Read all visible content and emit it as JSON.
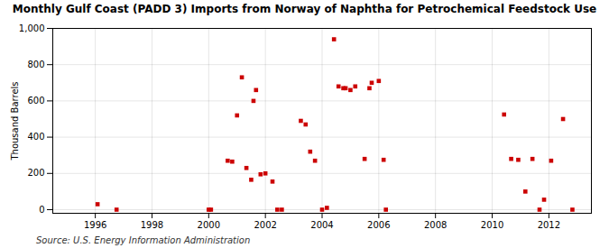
{
  "chart_data": {
    "type": "scatter",
    "title": "Monthly Gulf Coast (PADD 3) Imports from Norway of Naphtha for Petrochemical Feedstock Use",
    "ylabel": "Thousand Barrels",
    "source": "Source: U.S. Energy Information Administration",
    "color": "#cc0000",
    "marker": "square",
    "grid": true,
    "xlim": [
      1994.5,
      2013.5
    ],
    "xticks": [
      1996,
      1998,
      2000,
      2002,
      2004,
      2006,
      2008,
      2010,
      2012
    ],
    "ylim": [
      -20,
      1000
    ],
    "yticks": [
      0,
      200,
      400,
      600,
      800,
      {
        "value": 1000,
        "label": "1,000"
      }
    ],
    "x": [
      1996.08,
      1996.75,
      2000.0,
      2000.08,
      2000.67,
      2000.83,
      2001.0,
      2001.17,
      2001.33,
      2001.5,
      2001.58,
      2001.67,
      2001.83,
      2002.0,
      2002.25,
      2002.42,
      2002.58,
      2003.25,
      2003.42,
      2003.58,
      2003.75,
      2004.0,
      2004.17,
      2004.42,
      2004.58,
      2004.75,
      2004.83,
      2005.0,
      2005.17,
      2005.5,
      2005.67,
      2005.75,
      2006.0,
      2006.17,
      2006.25,
      2010.42,
      2010.67,
      2010.92,
      2011.17,
      2011.42,
      2011.67,
      2011.83,
      2012.08,
      2012.5,
      2012.83
    ],
    "values": [
      30,
      0,
      0,
      0,
      270,
      265,
      520,
      730,
      230,
      165,
      600,
      660,
      195,
      200,
      155,
      0,
      0,
      490,
      470,
      320,
      270,
      0,
      10,
      940,
      680,
      670,
      670,
      660,
      680,
      280,
      670,
      700,
      710,
      275,
      0,
      525,
      280,
      275,
      100,
      280,
      0,
      55,
      270,
      500,
      0
    ]
  }
}
